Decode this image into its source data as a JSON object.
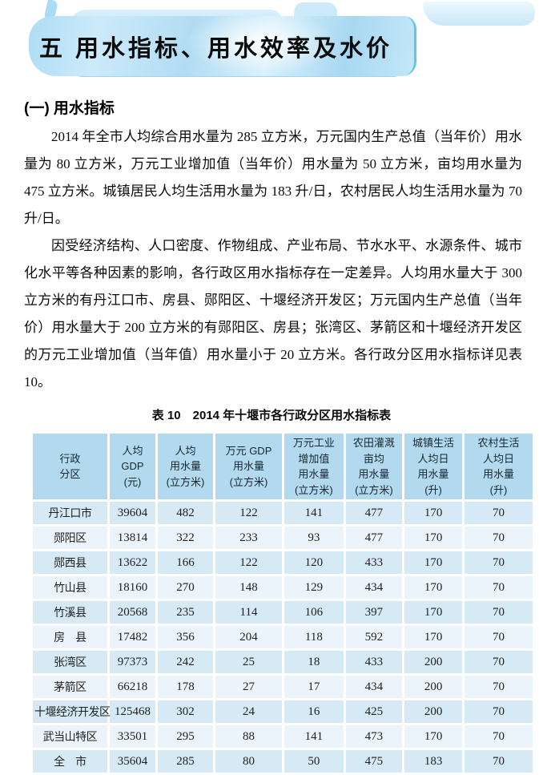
{
  "banner": {
    "title": "五 用水指标、用水效率及水价"
  },
  "section": {
    "heading": "(一) 用水指标"
  },
  "paragraphs": [
    "2014 年全市人均综合用水量为 285 立方米，万元国内生产总值（当年价）用水量为 80 立方米，万元工业增加值（当年价）用水量为 50 立方米，亩均用水量为 475 立方米。城镇居民人均生活用水量为 183 升/日，农村居民人均生活用水量为 70 升/日。",
    "因受经济结构、人口密度、作物组成、产业布局、节水水平、水源条件、城市化水平等各种因素的影响，各行政区用水指标存在一定差异。人均用水量大于 300 立方米的有丹江口市、房县、郧阳区、十堰经济开发区；万元国内生产总值（当年价）用水量大于 200 立方米的有郧阳区、房县；张湾区、茅箭区和十堰经济开发区的万元工业增加值（当年值）用水量小于 20 立方米。各行政分区用水指标详见表 10。"
  ],
  "table": {
    "caption": "表 10　2014 年十堰市各行政分区用水指标表",
    "headers": [
      "行政\n分区",
      "人均\nGDP\n(元)",
      "人均\n用水量\n(立方米)",
      "万元 GDP\n用水量\n(立方米)",
      "万元工业\n增加值\n用水量\n(立方米)",
      "农田灌溉\n亩均\n用水量\n(立方米)",
      "城镇生活\n人均日\n用水量\n(升)",
      "农村生活\n人均日\n用水量\n(升)"
    ],
    "rows": [
      {
        "name": "丹江口市",
        "values": [
          39604,
          482,
          122,
          141,
          477,
          170,
          70
        ]
      },
      {
        "name": "郧阳区",
        "values": [
          13814,
          322,
          233,
          93,
          477,
          170,
          70
        ]
      },
      {
        "name": "郧西县",
        "values": [
          13622,
          166,
          122,
          120,
          433,
          170,
          70
        ]
      },
      {
        "name": "竹山县",
        "values": [
          18160,
          270,
          148,
          129,
          434,
          170,
          70
        ]
      },
      {
        "name": "竹溪县",
        "values": [
          20568,
          235,
          114,
          106,
          397,
          170,
          70
        ]
      },
      {
        "name": "房　县",
        "values": [
          17482,
          356,
          204,
          118,
          592,
          170,
          70
        ]
      },
      {
        "name": "张湾区",
        "values": [
          97373,
          242,
          25,
          18,
          433,
          200,
          70
        ]
      },
      {
        "name": "茅箭区",
        "values": [
          66218,
          178,
          27,
          17,
          434,
          200,
          70
        ]
      },
      {
        "name": "十堰经济开发区",
        "values": [
          125468,
          302,
          24,
          16,
          425,
          200,
          70
        ]
      },
      {
        "name": "武当山特区",
        "values": [
          33501,
          295,
          88,
          141,
          473,
          170,
          70
        ]
      },
      {
        "name": "全　市",
        "values": [
          35604,
          285,
          80,
          50,
          475,
          183,
          70
        ]
      }
    ]
  },
  "colors": {
    "table_header_bg": "#b2d9ed",
    "table_row_odd": "#d6eaf6",
    "table_row_even": "#ebf4fa",
    "banner_edge": "#5fc8e5",
    "banner_under": "#9fd3f0",
    "banner_fill": "#b2dcf3"
  }
}
